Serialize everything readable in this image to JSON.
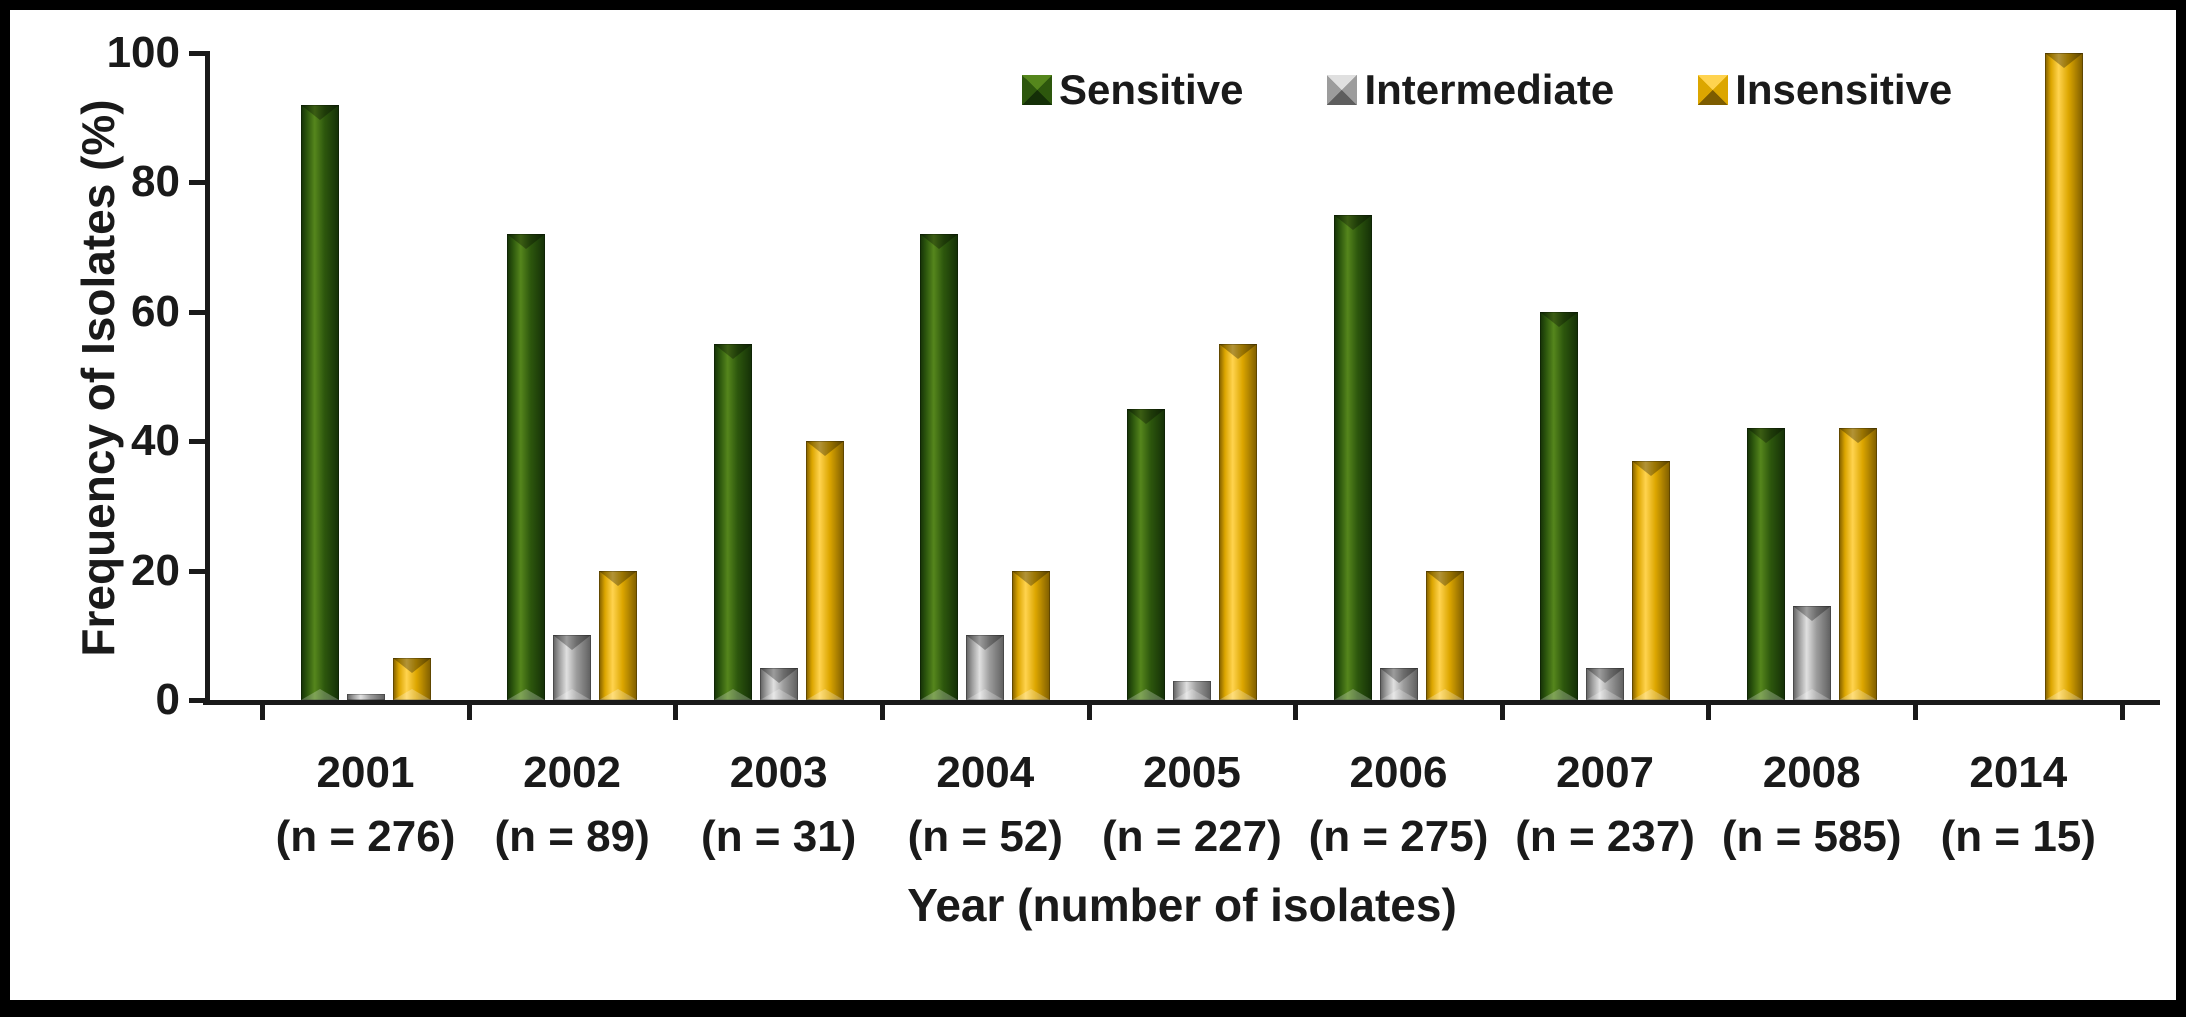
{
  "colors": {
    "background": "#ffffff",
    "frame_border": "#000000",
    "axis": "#1a1a1a",
    "text": "#1a1a1a"
  },
  "chart_data": {
    "type": "bar",
    "title": "",
    "ylabel": "Frequency of Isolates (%)",
    "xlabel": "Year (number of isolates)",
    "ylim": [
      0,
      100
    ],
    "yticks": [
      0,
      20,
      40,
      60,
      80,
      100
    ],
    "grid": false,
    "legend_position": "top-center",
    "categories": [
      "2001",
      "2002",
      "2003",
      "2004",
      "2005",
      "2006",
      "2007",
      "2008",
      "2014"
    ],
    "category_sublabels": [
      "(n = 276)",
      "(n = 89)",
      "(n = 31)",
      "(n = 52)",
      "(n = 227)",
      "(n = 275)",
      "(n = 237)",
      "(n = 585)",
      "(n = 15)"
    ],
    "series": [
      {
        "name": "Sensitive",
        "color": "#2d570d",
        "color_light": "#55861c",
        "color_dark": "#142f07",
        "values": [
          92,
          72,
          55,
          72,
          45,
          75,
          60,
          42,
          0
        ]
      },
      {
        "name": "Intermediate",
        "color": "#9c9c9c",
        "color_light": "#e0e0e0",
        "color_dark": "#5e5e5e",
        "values": [
          1,
          10,
          5,
          10,
          3,
          5,
          5,
          14.5,
          0
        ]
      },
      {
        "name": "Insensitive",
        "color": "#dca600",
        "color_light": "#ffd34f",
        "color_dark": "#7d5c00",
        "values": [
          6.5,
          20,
          40,
          20,
          55,
          20,
          37,
          42,
          100
        ]
      }
    ]
  }
}
